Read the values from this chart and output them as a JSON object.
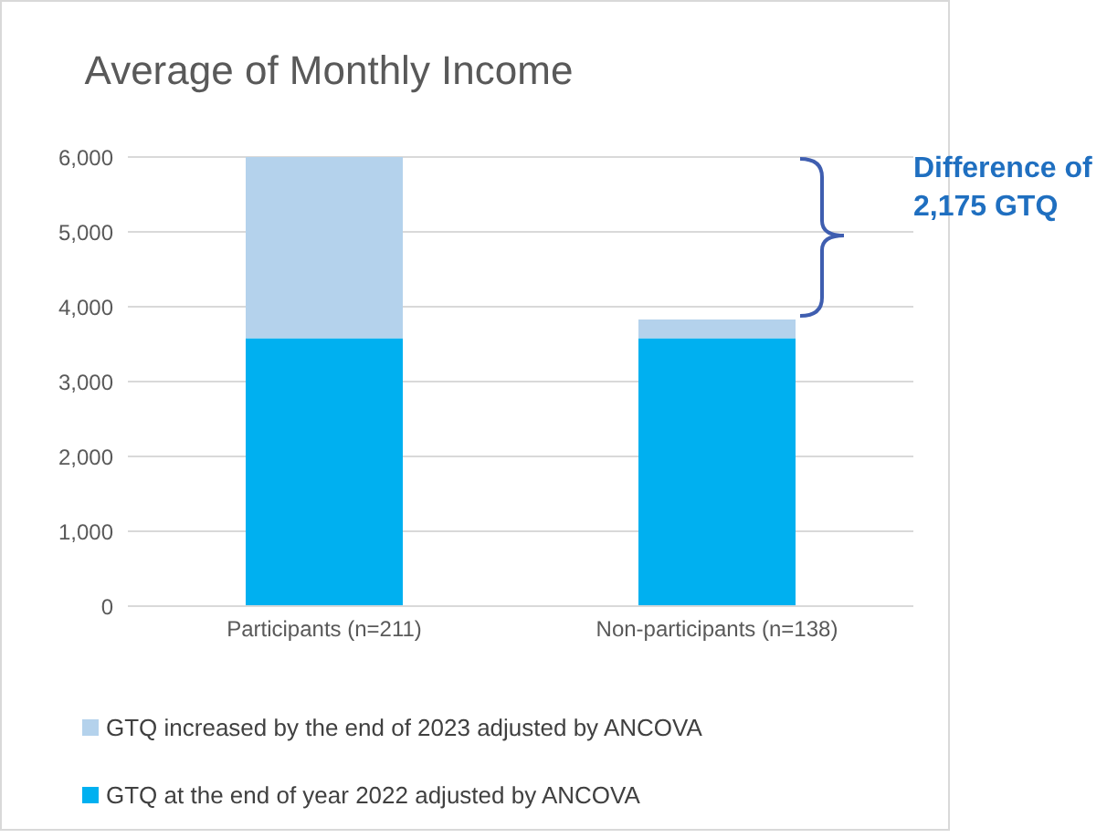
{
  "chart_data": {
    "type": "bar",
    "title": "Average of Monthly Income",
    "categories": [
      "Participants (n=211)",
      "Non-participants (n=138)"
    ],
    "stacked": true,
    "series": [
      {
        "name": "GTQ at the end of year 2022 adjusted by ANCOVA",
        "color": "#00b0f0",
        "values": [
          3580,
          3580
        ]
      },
      {
        "name": "GTQ increased by the end of 2023 adjusted by ANCOVA",
        "color": "#b4d2ec",
        "values": [
          2420,
          250
        ]
      }
    ],
    "ylim": [
      0,
      6000
    ],
    "yticks": [
      {
        "value": 0,
        "label": "0"
      },
      {
        "value": 1000,
        "label": "1,000"
      },
      {
        "value": 2000,
        "label": "2,000"
      },
      {
        "value": 3000,
        "label": "3,000"
      },
      {
        "value": 4000,
        "label": "4,000"
      },
      {
        "value": 5000,
        "label": "5,000"
      },
      {
        "value": 6000,
        "label": "6,000"
      }
    ],
    "grid": "y",
    "legend": "bottom",
    "annotations": [
      "Difference of 2,175 GTQ"
    ]
  }
}
